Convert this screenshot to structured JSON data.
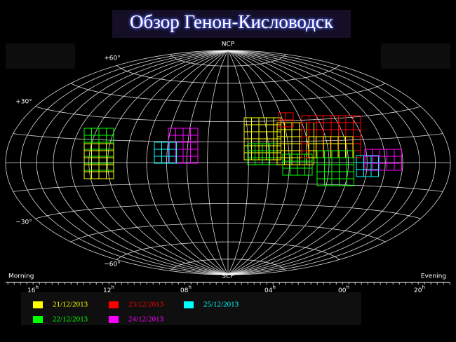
{
  "title": "Обзор  Генон-Кисловодск",
  "sky_map": {
    "pole_labels": [
      "NCP",
      "SCP"
    ],
    "dec_labels": [
      "+60°",
      "+30°",
      "−30°",
      "−60°"
    ],
    "side_labels": [
      "Morning",
      "Evening"
    ],
    "hour_labels": [
      "16",
      "12",
      "08",
      "04",
      "00",
      "20"
    ],
    "hour_unit": "h"
  },
  "legend": [
    {
      "label": "21/12/2013",
      "color": "#ffff00"
    },
    {
      "label": "22/12/2013",
      "color": "#00ff00"
    },
    {
      "label": "23/12/2013",
      "color": "#ff0000"
    },
    {
      "label": "24/12/2013",
      "color": "#ff00ff"
    },
    {
      "label": "25/12/2013",
      "color": "#00ffff"
    }
  ]
}
